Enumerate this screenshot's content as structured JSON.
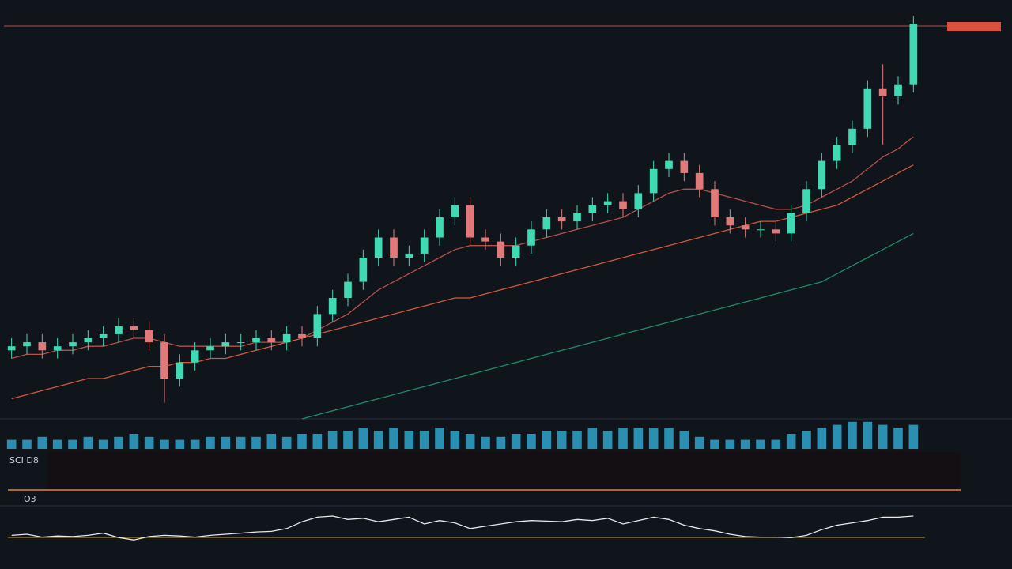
{
  "panel_labels": [
    "SCI D8",
    "O3"
  ],
  "chart_data": {
    "type": "candlestick",
    "categories": [
      null,
      null,
      null,
      null,
      null,
      null,
      null,
      null,
      null,
      null,
      null,
      null,
      null,
      null,
      null,
      null,
      null,
      null,
      null,
      null,
      null,
      null,
      null,
      null,
      null,
      null,
      null,
      null,
      null,
      null,
      null,
      null,
      null,
      null,
      null,
      null,
      null,
      null,
      null,
      null,
      null,
      null,
      null,
      null,
      null,
      null,
      null,
      null,
      null,
      null,
      null,
      null,
      null,
      null,
      null,
      null,
      null,
      null,
      null,
      null
    ],
    "open": [
      17,
      18,
      19,
      17,
      18,
      19,
      20,
      21,
      23,
      22,
      19,
      10,
      14,
      17,
      18,
      19,
      19,
      20,
      19,
      21,
      20,
      26,
      30,
      34,
      40,
      45,
      40,
      41,
      45,
      50,
      53,
      45,
      44,
      40,
      43,
      47,
      50,
      49,
      51,
      53,
      54,
      52,
      56,
      62,
      64,
      61,
      57,
      50,
      48,
      47,
      47,
      46,
      51,
      57,
      64,
      68,
      72,
      82,
      80,
      83
    ],
    "close": [
      18,
      19,
      17,
      18,
      19,
      20,
      21,
      23,
      22,
      19,
      10,
      14,
      17,
      18,
      19,
      19,
      20,
      19,
      21,
      20,
      26,
      30,
      34,
      40,
      45,
      40,
      41,
      45,
      50,
      53,
      45,
      44,
      40,
      43,
      47,
      50,
      49,
      51,
      53,
      54,
      52,
      56,
      62,
      64,
      61,
      57,
      50,
      48,
      47,
      47,
      46,
      51,
      57,
      64,
      68,
      72,
      82,
      80,
      83,
      98
    ],
    "high": [
      20,
      21,
      21,
      20,
      21,
      22,
      23,
      25,
      25,
      24,
      21,
      16,
      19,
      20,
      21,
      21,
      22,
      22,
      23,
      23,
      28,
      32,
      36,
      42,
      47,
      47,
      43,
      47,
      52,
      55,
      55,
      47,
      46,
      45,
      49,
      52,
      52,
      53,
      55,
      56,
      56,
      58,
      64,
      66,
      66,
      63,
      59,
      52,
      50,
      49,
      49,
      53,
      59,
      66,
      70,
      74,
      84,
      88,
      85,
      100
    ],
    "low": [
      15,
      16,
      15,
      15,
      16,
      17,
      18,
      19,
      20,
      17,
      4,
      8,
      12,
      15,
      16,
      17,
      17,
      17,
      17,
      18,
      18,
      24,
      28,
      32,
      38,
      38,
      38,
      39,
      43,
      48,
      43,
      42,
      38,
      38,
      41,
      45,
      47,
      47,
      49,
      51,
      50,
      50,
      54,
      60,
      59,
      55,
      48,
      46,
      45,
      45,
      44,
      44,
      49,
      55,
      62,
      66,
      70,
      68,
      78,
      81
    ],
    "color_up": "#3fd9b4",
    "color_down": "#e07a7a",
    "ylim": [
      0,
      100
    ],
    "series": [
      {
        "color": "#b5504a",
        "values": [
          15,
          16,
          16,
          17,
          17,
          18,
          18,
          19,
          20,
          20,
          19,
          18,
          18,
          18,
          18,
          18,
          19,
          19,
          19,
          20,
          22,
          24,
          26,
          29,
          32,
          34,
          36,
          38,
          40,
          42,
          43,
          43,
          43,
          43,
          44,
          45,
          46,
          47,
          48,
          49,
          50,
          52,
          54,
          56,
          57,
          57,
          56,
          55,
          54,
          53,
          52,
          52,
          53,
          55,
          57,
          59,
          62,
          65,
          67,
          70
        ]
      },
      {
        "color": "#d0583e",
        "values": [
          5,
          6,
          7,
          8,
          9,
          10,
          10,
          11,
          12,
          13,
          13,
          14,
          14,
          15,
          15,
          16,
          17,
          18,
          19,
          20,
          21,
          22,
          23,
          24,
          25,
          26,
          27,
          28,
          29,
          30,
          30,
          31,
          32,
          33,
          34,
          35,
          36,
          37,
          38,
          39,
          40,
          41,
          42,
          43,
          44,
          45,
          46,
          47,
          48,
          49,
          49,
          50,
          51,
          52,
          53,
          55,
          57,
          59,
          61,
          63
        ]
      },
      {
        "color": "#1f8a6a",
        "values": [
          null,
          null,
          null,
          null,
          null,
          null,
          null,
          null,
          null,
          null,
          null,
          null,
          null,
          null,
          null,
          null,
          null,
          null,
          null,
          0,
          1,
          2,
          3,
          4,
          5,
          6,
          7,
          8,
          9,
          10,
          11,
          12,
          13,
          14,
          15,
          16,
          17,
          18,
          19,
          20,
          21,
          22,
          23,
          24,
          25,
          26,
          27,
          28,
          29,
          30,
          31,
          32,
          33,
          34,
          36,
          38,
          40,
          42,
          44,
          46
        ]
      }
    ],
    "volume": {
      "color": "#2a8fb0",
      "ylim": [
        0,
        10
      ],
      "values": [
        3,
        3,
        4,
        3,
        3,
        4,
        3,
        4,
        5,
        4,
        3,
        3,
        3,
        4,
        4,
        4,
        4,
        5,
        4,
        5,
        5,
        6,
        6,
        7,
        6,
        7,
        6,
        6,
        7,
        6,
        5,
        4,
        4,
        5,
        5,
        6,
        6,
        6,
        7,
        6,
        7,
        7,
        7,
        7,
        6,
        4,
        3,
        3,
        3,
        3,
        3,
        5,
        6,
        7,
        8,
        9,
        9,
        8,
        7,
        8
      ]
    },
    "oscillator": {
      "color": "#e8e8e8",
      "ylim": [
        0,
        100
      ],
      "values": [
        48,
        50,
        45,
        47,
        46,
        48,
        52,
        44,
        40,
        46,
        48,
        47,
        45,
        48,
        50,
        52,
        54,
        55,
        60,
        72,
        80,
        82,
        76,
        78,
        72,
        76,
        80,
        68,
        74,
        70,
        60,
        64,
        68,
        72,
        74,
        73,
        72,
        76,
        74,
        78,
        68,
        74,
        80,
        76,
        66,
        60,
        56,
        50,
        46,
        45,
        45,
        44,
        48,
        58,
        66,
        70,
        74,
        80,
        80,
        82
      ]
    }
  }
}
